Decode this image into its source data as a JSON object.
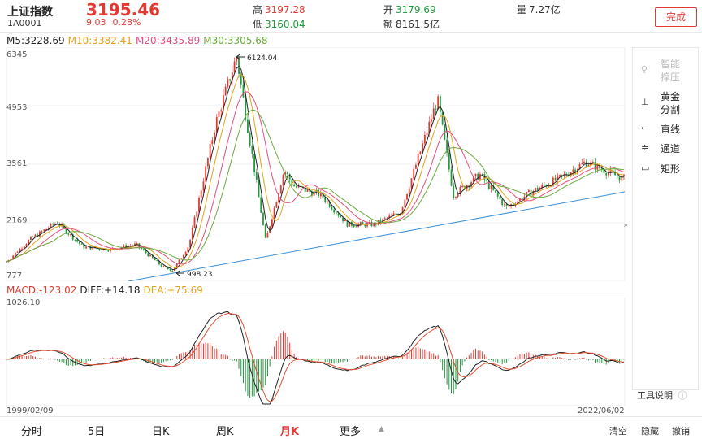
{
  "header": {
    "name": "上证指数",
    "code": "1A0001",
    "price": "3195.46",
    "change": "9.03",
    "change_pct": "0.28%",
    "high_label": "高",
    "high": "3197.28",
    "low_label": "低",
    "low": "3160.04",
    "open_label": "开",
    "open": "3179.69",
    "amount_label": "额",
    "amount": "8161.5亿",
    "volume_label": "量",
    "volume": "7.27亿",
    "done_button": "完成"
  },
  "ma": {
    "m5": "M5:3228.69",
    "m10": "M10:3382.41",
    "m20": "M20:3435.89",
    "m30": "M30:3305.68"
  },
  "price_axis": [
    "6345",
    "4953",
    "3561",
    "2169",
    "777"
  ],
  "annotations": {
    "peak": "6124.04",
    "trough": "998.23"
  },
  "macd": {
    "macd": "MACD:-123.02",
    "diff": "DIFF:+14.18",
    "dea": "DEA:+75.69",
    "axis_top": "1026.10"
  },
  "dates": {
    "start": "1999/02/09",
    "end": "2022/06/02"
  },
  "tools": {
    "items": [
      {
        "icon": "♀",
        "label1": "智能",
        "label2": "撑压",
        "disabled": true
      },
      {
        "icon": "⊥",
        "label1": "黄金",
        "label2": "分割",
        "disabled": false
      },
      {
        "icon": "←",
        "label1": "直线",
        "label2": "",
        "disabled": false
      },
      {
        "icon": "≑",
        "label1": "通道",
        "label2": "",
        "disabled": false
      },
      {
        "icon": "▭",
        "label1": "矩形",
        "label2": "",
        "disabled": false
      }
    ],
    "help": "工具说明",
    "help_icon": "ⓘ"
  },
  "tabs": [
    "分时",
    "5日",
    "日K",
    "周K",
    "月K",
    "更多"
  ],
  "active_tab": "月K",
  "actions": [
    "清空",
    "隐藏",
    "撤销"
  ],
  "colors": {
    "up": "#e23a32",
    "down": "#1f9a3c",
    "ma5": "#222222",
    "ma10": "#e3a21a",
    "ma20": "#e05080",
    "ma30": "#6aaa3c",
    "trendline": "#3a8fd8"
  },
  "chart_data": {
    "type": "candlestick",
    "x_start": "1999/02/09",
    "x_end": "2022/06/02",
    "price_range": [
      777,
      6345
    ],
    "points": [
      [
        1999,
        1150
      ],
      [
        2000,
        1750
      ],
      [
        2001,
        2150
      ],
      [
        2002,
        1560
      ],
      [
        2003,
        1500
      ],
      [
        2004,
        1620
      ],
      [
        2005,
        1080
      ],
      [
        2005.4,
        998.23
      ],
      [
        2006,
        1600
      ],
      [
        2007,
        4500
      ],
      [
        2007.8,
        6124.04
      ],
      [
        2008.9,
        1700
      ],
      [
        2009.6,
        3400
      ],
      [
        2010,
        3000
      ],
      [
        2011,
        2800
      ],
      [
        2012,
        2100
      ],
      [
        2013,
        2100
      ],
      [
        2014,
        2400
      ],
      [
        2015.4,
        5100
      ],
      [
        2016,
        2800
      ],
      [
        2017,
        3300
      ],
      [
        2018,
        2500
      ],
      [
        2019,
        2900
      ],
      [
        2020,
        3200
      ],
      [
        2021,
        3600
      ],
      [
        2022.4,
        3195.46
      ]
    ],
    "macd_top": 1026.1
  }
}
